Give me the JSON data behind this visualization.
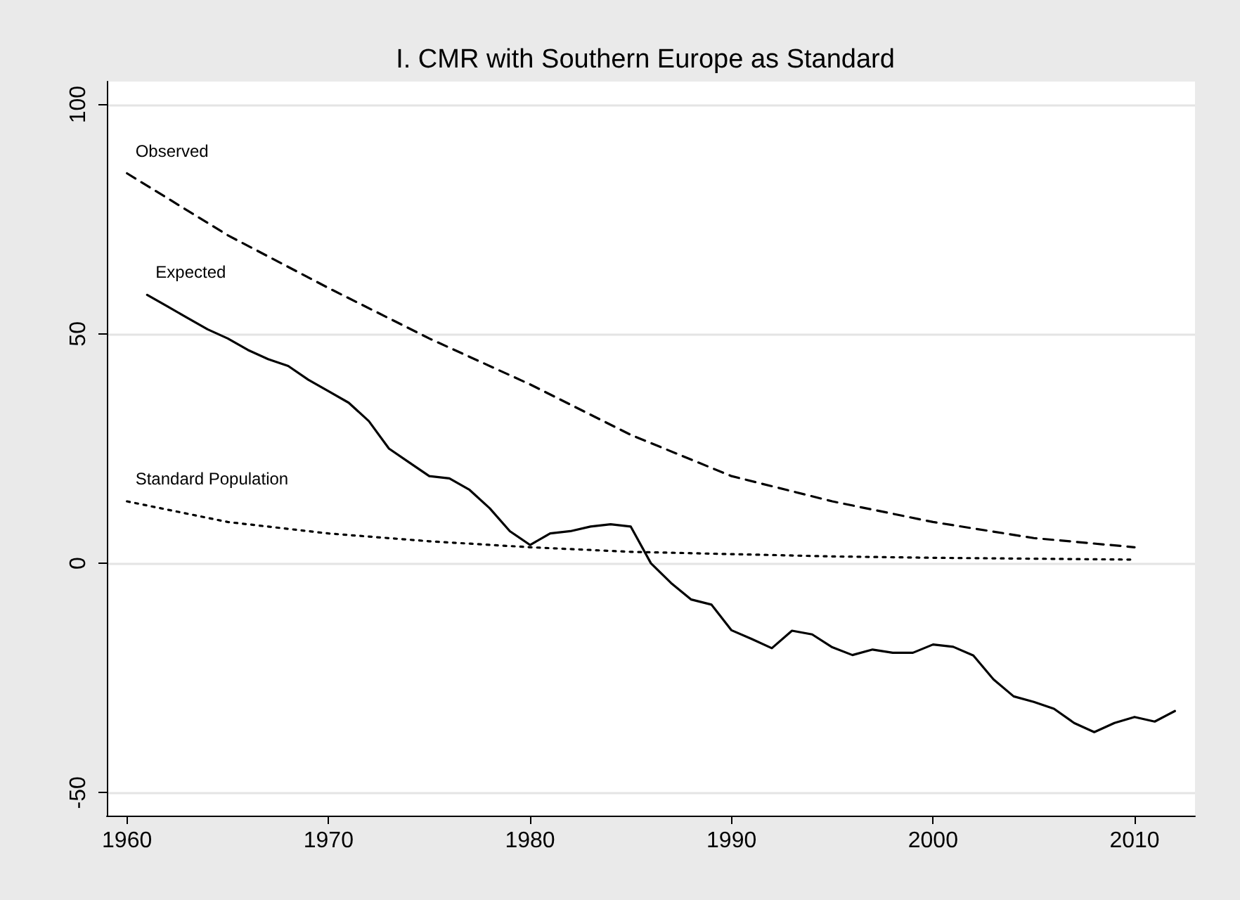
{
  "chart_data": {
    "type": "line",
    "title": "I. CMR with Southern Europe as Standard",
    "xlim": [
      1959,
      2013
    ],
    "xticks": [
      1960,
      1970,
      1980,
      1990,
      2000,
      2010
    ],
    "ylim": [
      -55,
      105
    ],
    "yticks": [
      -50,
      0,
      50,
      100
    ],
    "grid": "y",
    "legend": false,
    "marker": "none",
    "series": [
      {
        "name": "Observed",
        "color": "#000000",
        "line_style": "dashed",
        "x": [
          1960,
          1965,
          1970,
          1975,
          1980,
          1985,
          1990,
          1995,
          2000,
          2005,
          2010
        ],
        "values": [
          85,
          71.5,
          60,
          49,
          39,
          28,
          19,
          13.5,
          9,
          5.5,
          3.5
        ]
      },
      {
        "name": "Expected",
        "color": "#000000",
        "line_style": "solid",
        "x": [
          1961,
          1962,
          1963,
          1964,
          1965,
          1966,
          1967,
          1968,
          1969,
          1970,
          1971,
          1972,
          1973,
          1974,
          1975,
          1976,
          1977,
          1978,
          1979,
          1980,
          1981,
          1982,
          1983,
          1984,
          1985,
          1986,
          1987,
          1988,
          1989,
          1990,
          1991,
          1992,
          1993,
          1994,
          1995,
          1996,
          1997,
          1998,
          1999,
          2000,
          2001,
          2002,
          2003,
          2004,
          2005,
          2006,
          2007,
          2008,
          2009,
          2010,
          2011,
          2012
        ],
        "values": [
          58.5,
          56,
          53.5,
          51,
          49,
          46.5,
          44.5,
          43,
          40,
          37.5,
          35,
          31,
          25,
          22,
          19,
          18.5,
          16,
          12,
          7,
          4,
          6.5,
          7,
          8,
          8.5,
          8,
          0,
          -4.3,
          -7.9,
          -9,
          -14.6,
          -16.5,
          -18.5,
          -14.7,
          -15.5,
          -18.3,
          -20,
          -18.8,
          -19.5,
          -19.5,
          -17.7,
          -18.2,
          -20.1,
          -25.3,
          -29,
          -30.2,
          -31.7,
          -34.8,
          -36.8,
          -34.8,
          -33.5,
          -34.5,
          -32.2
        ]
      },
      {
        "name": "Standard Population",
        "color": "#000000",
        "line_style": "dotted",
        "x": [
          1960,
          1965,
          1970,
          1975,
          1980,
          1985,
          1990,
          1995,
          2000,
          2005,
          2010
        ],
        "values": [
          13.5,
          9,
          6.5,
          4.8,
          3.5,
          2.5,
          2,
          1.5,
          1.2,
          1,
          0.8
        ]
      }
    ]
  }
}
